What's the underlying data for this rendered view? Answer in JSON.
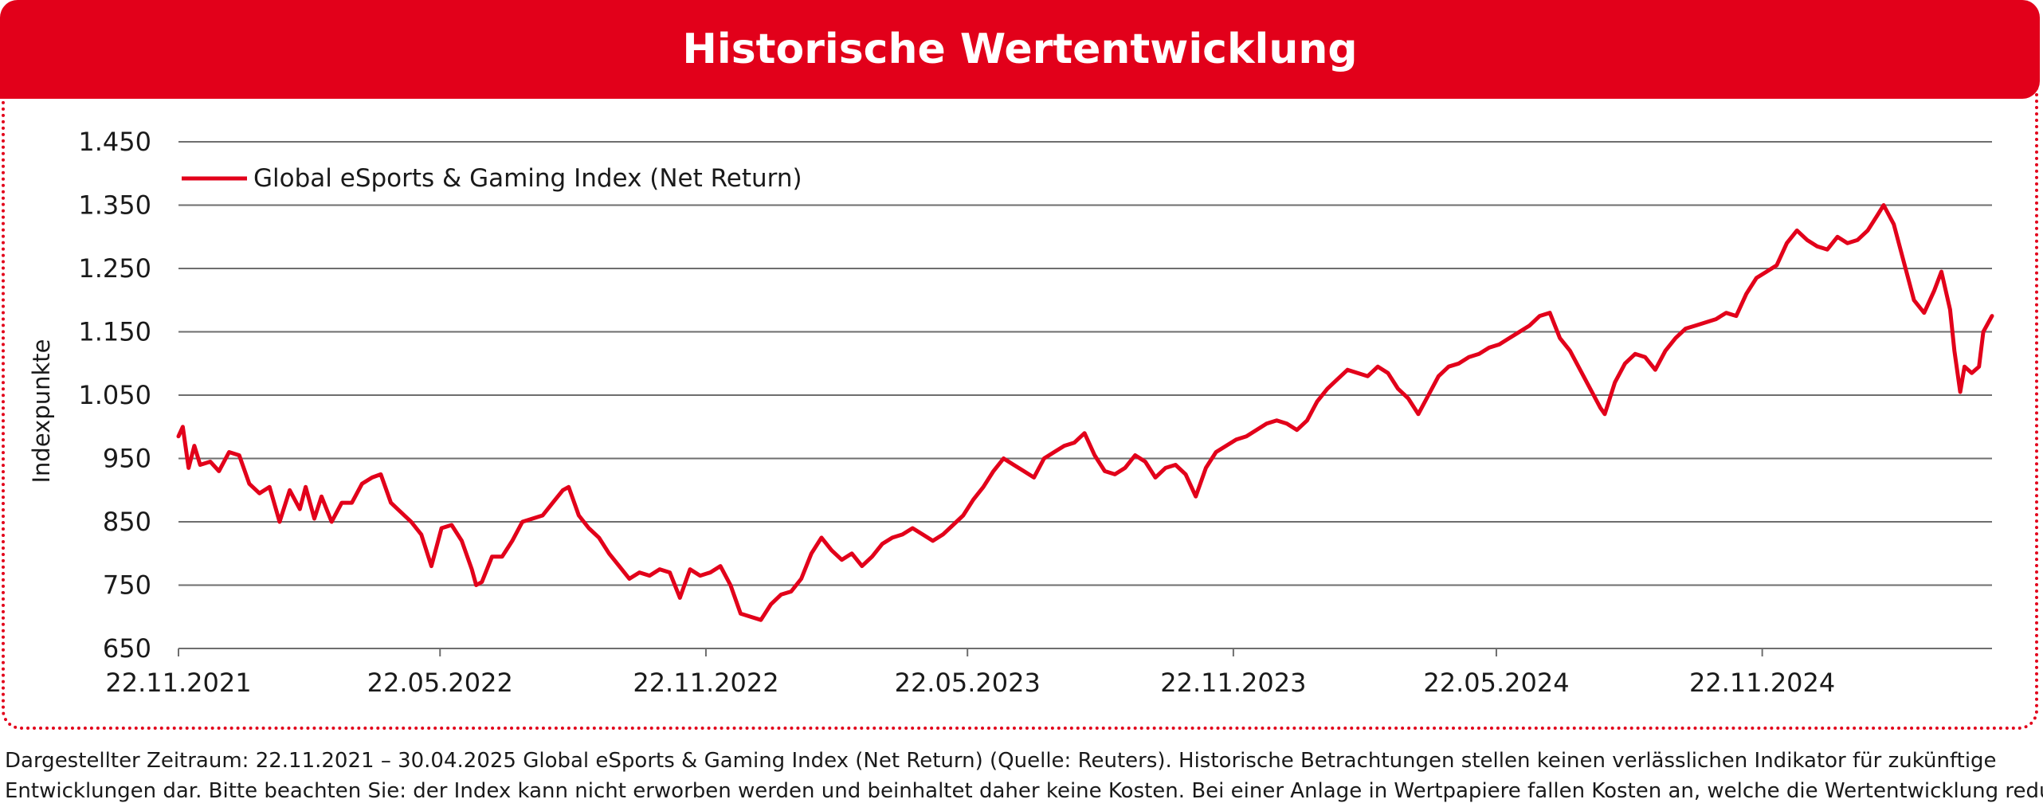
{
  "header": {
    "title": "Historische Wertentwicklung"
  },
  "chart_data": {
    "type": "line",
    "title": "",
    "xlabel": "",
    "ylabel": "Indexpunkte",
    "ylim": [
      650,
      1450
    ],
    "y_ticks": [
      "1.450",
      "1.350",
      "1.250",
      "1.150",
      "1.050",
      "950",
      "850",
      "750",
      "650"
    ],
    "y_tick_values": [
      1450,
      1350,
      1250,
      1150,
      1050,
      950,
      850,
      750,
      650
    ],
    "x_range": [
      "2021-11-22",
      "2025-04-30"
    ],
    "x_ticks": [
      "22.11.2021",
      "22.05.2022",
      "22.11.2022",
      "22.05.2023",
      "22.11.2023",
      "22.05.2024",
      "22.11.2024"
    ],
    "x_tick_dates": [
      "2021-11-22",
      "2022-05-22",
      "2022-11-22",
      "2023-05-22",
      "2023-11-22",
      "2024-05-22",
      "2024-11-22"
    ],
    "grid": true,
    "legend_position": "top-left",
    "line_color": "#e2001a",
    "series": [
      {
        "name": "Global eSports & Gaming Index (Net Return)",
        "points": [
          [
            "2021-11-22",
            985
          ],
          [
            "2021-11-25",
            1000
          ],
          [
            "2021-11-29",
            935
          ],
          [
            "2021-12-03",
            970
          ],
          [
            "2021-12-07",
            940
          ],
          [
            "2021-12-14",
            945
          ],
          [
            "2021-12-20",
            930
          ],
          [
            "2021-12-27",
            960
          ],
          [
            "2022-01-03",
            955
          ],
          [
            "2022-01-10",
            910
          ],
          [
            "2022-01-17",
            895
          ],
          [
            "2022-01-24",
            905
          ],
          [
            "2022-01-31",
            850
          ],
          [
            "2022-02-07",
            900
          ],
          [
            "2022-02-14",
            870
          ],
          [
            "2022-02-18",
            905
          ],
          [
            "2022-02-24",
            855
          ],
          [
            "2022-03-01",
            890
          ],
          [
            "2022-03-08",
            850
          ],
          [
            "2022-03-15",
            880
          ],
          [
            "2022-03-22",
            880
          ],
          [
            "2022-03-29",
            910
          ],
          [
            "2022-04-05",
            920
          ],
          [
            "2022-04-11",
            925
          ],
          [
            "2022-04-18",
            880
          ],
          [
            "2022-04-25",
            865
          ],
          [
            "2022-05-02",
            850
          ],
          [
            "2022-05-09",
            830
          ],
          [
            "2022-05-16",
            780
          ],
          [
            "2022-05-23",
            840
          ],
          [
            "2022-05-30",
            845
          ],
          [
            "2022-06-06",
            820
          ],
          [
            "2022-06-13",
            775
          ],
          [
            "2022-06-16",
            750
          ],
          [
            "2022-06-20",
            755
          ],
          [
            "2022-06-27",
            795
          ],
          [
            "2022-07-04",
            795
          ],
          [
            "2022-07-11",
            820
          ],
          [
            "2022-07-18",
            850
          ],
          [
            "2022-07-25",
            855
          ],
          [
            "2022-08-01",
            860
          ],
          [
            "2022-08-08",
            880
          ],
          [
            "2022-08-15",
            900
          ],
          [
            "2022-08-19",
            905
          ],
          [
            "2022-08-26",
            860
          ],
          [
            "2022-09-02",
            840
          ],
          [
            "2022-09-09",
            825
          ],
          [
            "2022-09-16",
            800
          ],
          [
            "2022-09-23",
            780
          ],
          [
            "2022-09-30",
            760
          ],
          [
            "2022-10-07",
            770
          ],
          [
            "2022-10-14",
            765
          ],
          [
            "2022-10-21",
            775
          ],
          [
            "2022-10-28",
            770
          ],
          [
            "2022-11-04",
            730
          ],
          [
            "2022-11-11",
            775
          ],
          [
            "2022-11-18",
            765
          ],
          [
            "2022-11-25",
            770
          ],
          [
            "2022-12-02",
            780
          ],
          [
            "2022-12-09",
            750
          ],
          [
            "2022-12-16",
            705
          ],
          [
            "2022-12-23",
            700
          ],
          [
            "2022-12-30",
            695
          ],
          [
            "2023-01-06",
            720
          ],
          [
            "2023-01-13",
            735
          ],
          [
            "2023-01-20",
            740
          ],
          [
            "2023-01-27",
            760
          ],
          [
            "2023-02-03",
            800
          ],
          [
            "2023-02-10",
            825
          ],
          [
            "2023-02-17",
            805
          ],
          [
            "2023-02-24",
            790
          ],
          [
            "2023-03-03",
            800
          ],
          [
            "2023-03-10",
            780
          ],
          [
            "2023-03-17",
            795
          ],
          [
            "2023-03-24",
            815
          ],
          [
            "2023-03-31",
            825
          ],
          [
            "2023-04-07",
            830
          ],
          [
            "2023-04-14",
            840
          ],
          [
            "2023-04-21",
            830
          ],
          [
            "2023-04-28",
            820
          ],
          [
            "2023-05-05",
            830
          ],
          [
            "2023-05-12",
            845
          ],
          [
            "2023-05-19",
            860
          ],
          [
            "2023-05-26",
            885
          ],
          [
            "2023-06-02",
            905
          ],
          [
            "2023-06-09",
            930
          ],
          [
            "2023-06-16",
            950
          ],
          [
            "2023-06-23",
            940
          ],
          [
            "2023-06-30",
            930
          ],
          [
            "2023-07-07",
            920
          ],
          [
            "2023-07-14",
            950
          ],
          [
            "2023-07-21",
            960
          ],
          [
            "2023-07-28",
            970
          ],
          [
            "2023-08-04",
            975
          ],
          [
            "2023-08-11",
            990
          ],
          [
            "2023-08-18",
            955
          ],
          [
            "2023-08-25",
            930
          ],
          [
            "2023-09-01",
            925
          ],
          [
            "2023-09-08",
            935
          ],
          [
            "2023-09-15",
            955
          ],
          [
            "2023-09-22",
            945
          ],
          [
            "2023-09-29",
            920
          ],
          [
            "2023-10-06",
            935
          ],
          [
            "2023-10-13",
            940
          ],
          [
            "2023-10-20",
            925
          ],
          [
            "2023-10-27",
            890
          ],
          [
            "2023-11-03",
            935
          ],
          [
            "2023-11-10",
            960
          ],
          [
            "2023-11-17",
            970
          ],
          [
            "2023-11-24",
            980
          ],
          [
            "2023-12-01",
            985
          ],
          [
            "2023-12-08",
            995
          ],
          [
            "2023-12-15",
            1005
          ],
          [
            "2023-12-22",
            1010
          ],
          [
            "2023-12-29",
            1005
          ],
          [
            "2024-01-05",
            995
          ],
          [
            "2024-01-12",
            1010
          ],
          [
            "2024-01-19",
            1040
          ],
          [
            "2024-01-26",
            1060
          ],
          [
            "2024-02-02",
            1075
          ],
          [
            "2024-02-09",
            1090
          ],
          [
            "2024-02-16",
            1085
          ],
          [
            "2024-02-23",
            1080
          ],
          [
            "2024-03-01",
            1095
          ],
          [
            "2024-03-08",
            1085
          ],
          [
            "2024-03-15",
            1060
          ],
          [
            "2024-03-22",
            1045
          ],
          [
            "2024-03-29",
            1020
          ],
          [
            "2024-04-05",
            1050
          ],
          [
            "2024-04-12",
            1080
          ],
          [
            "2024-04-19",
            1095
          ],
          [
            "2024-04-26",
            1100
          ],
          [
            "2024-05-03",
            1110
          ],
          [
            "2024-05-10",
            1115
          ],
          [
            "2024-05-17",
            1125
          ],
          [
            "2024-05-24",
            1130
          ],
          [
            "2024-05-31",
            1140
          ],
          [
            "2024-06-07",
            1150
          ],
          [
            "2024-06-14",
            1160
          ],
          [
            "2024-06-21",
            1175
          ],
          [
            "2024-06-28",
            1180
          ],
          [
            "2024-07-05",
            1140
          ],
          [
            "2024-07-12",
            1120
          ],
          [
            "2024-07-19",
            1090
          ],
          [
            "2024-07-26",
            1060
          ],
          [
            "2024-08-02",
            1030
          ],
          [
            "2024-08-05",
            1020
          ],
          [
            "2024-08-12",
            1070
          ],
          [
            "2024-08-19",
            1100
          ],
          [
            "2024-08-26",
            1115
          ],
          [
            "2024-09-02",
            1110
          ],
          [
            "2024-09-09",
            1090
          ],
          [
            "2024-09-16",
            1120
          ],
          [
            "2024-09-23",
            1140
          ],
          [
            "2024-09-30",
            1155
          ],
          [
            "2024-10-07",
            1160
          ],
          [
            "2024-10-14",
            1165
          ],
          [
            "2024-10-21",
            1170
          ],
          [
            "2024-10-28",
            1180
          ],
          [
            "2024-11-04",
            1175
          ],
          [
            "2024-11-11",
            1210
          ],
          [
            "2024-11-18",
            1235
          ],
          [
            "2024-11-25",
            1245
          ],
          [
            "2024-12-02",
            1255
          ],
          [
            "2024-12-09",
            1290
          ],
          [
            "2024-12-16",
            1310
          ],
          [
            "2024-12-23",
            1295
          ],
          [
            "2024-12-30",
            1285
          ],
          [
            "2025-01-06",
            1280
          ],
          [
            "2025-01-13",
            1300
          ],
          [
            "2025-01-20",
            1290
          ],
          [
            "2025-01-27",
            1295
          ],
          [
            "2025-02-03",
            1310
          ],
          [
            "2025-02-10",
            1335
          ],
          [
            "2025-02-14",
            1350
          ],
          [
            "2025-02-21",
            1320
          ],
          [
            "2025-02-28",
            1260
          ],
          [
            "2025-03-07",
            1200
          ],
          [
            "2025-03-14",
            1180
          ],
          [
            "2025-03-21",
            1215
          ],
          [
            "2025-03-26",
            1245
          ],
          [
            "2025-04-01",
            1185
          ],
          [
            "2025-04-04",
            1120
          ],
          [
            "2025-04-08",
            1055
          ],
          [
            "2025-04-11",
            1095
          ],
          [
            "2025-04-16",
            1085
          ],
          [
            "2025-04-21",
            1095
          ],
          [
            "2025-04-24",
            1150
          ],
          [
            "2025-04-30",
            1175
          ]
        ]
      }
    ]
  },
  "footnote": {
    "line1": "Dargestellter Zeitraum: 22.11.2021 – 30.04.2025 Global eSports & Gaming Index (Net Return) (Quelle: Reuters). Historische Betrachtungen stellen keinen verlässlichen Indikator für zukünftige",
    "line2": "Entwicklungen dar. Bitte beachten Sie: der Index kann nicht erworben werden und beinhaltet daher keine Kosten. Bei einer Anlage in Wertpapiere fallen Kosten an, welche die Wertentwicklung reduzieren."
  }
}
